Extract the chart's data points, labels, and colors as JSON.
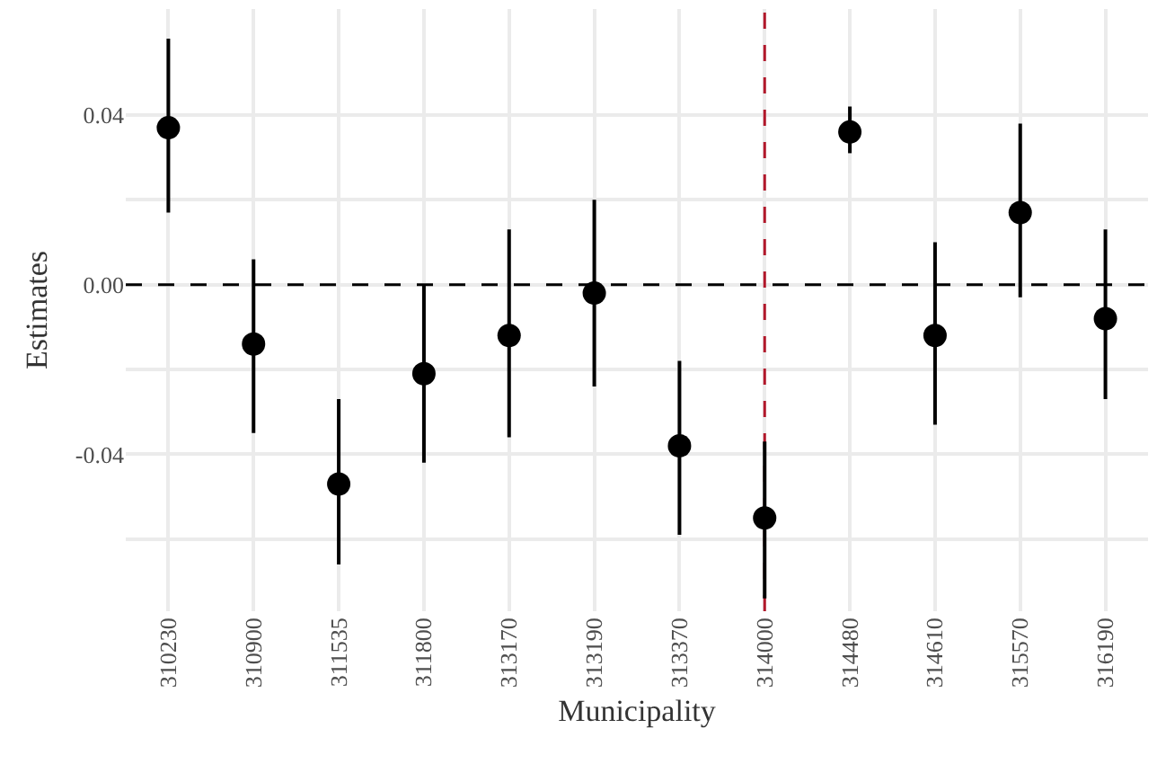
{
  "chart_data": {
    "type": "scatter",
    "xlabel": "Municipality",
    "ylabel": "Estimates",
    "categories": [
      "310230",
      "310900",
      "311535",
      "311800",
      "313170",
      "313190",
      "313370",
      "314000",
      "314480",
      "314610",
      "315570",
      "316190"
    ],
    "values": [
      0.037,
      -0.014,
      -0.047,
      -0.021,
      -0.012,
      -0.002,
      -0.038,
      -0.055,
      0.036,
      -0.012,
      0.017,
      -0.008
    ],
    "errors": [
      [
        0.017,
        0.058
      ],
      [
        -0.035,
        0.006
      ],
      [
        -0.066,
        -0.027
      ],
      [
        -0.042,
        0
      ],
      [
        -0.036,
        0.013
      ],
      [
        -0.024,
        0.02
      ],
      [
        -0.059,
        -0.018
      ],
      [
        -0.074,
        -0.037
      ],
      [
        0.031,
        0.042
      ],
      [
        -0.033,
        0.01
      ],
      [
        -0.003,
        0.038
      ],
      [
        -0.027,
        0.013
      ]
    ],
    "color": "#000000",
    "marker": "circle",
    "ylim": [
      -0.077,
      0.065
    ],
    "yticks": [
      {
        "value": -0.06,
        "label": null
      },
      {
        "value": -0.04,
        "label": "-0.04"
      },
      {
        "value": -0.02,
        "label": null
      },
      {
        "value": 0,
        "label": "0.00"
      },
      {
        "value": 0.02,
        "label": null
      },
      {
        "value": 0.04,
        "label": "0.04"
      }
    ],
    "grid": true,
    "ref_lines": [
      {
        "axis": "y",
        "value": 0,
        "color": "#000000",
        "line_style": "dashed"
      },
      {
        "axis": "x",
        "value": "314000",
        "color": "#b2182b",
        "line_style": "dashed"
      }
    ]
  }
}
